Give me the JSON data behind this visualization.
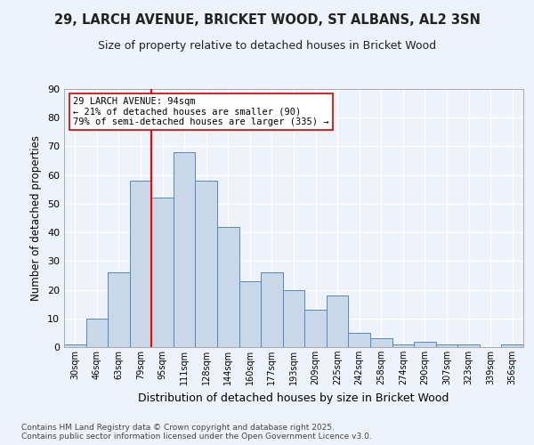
{
  "title": "29, LARCH AVENUE, BRICKET WOOD, ST ALBANS, AL2 3SN",
  "subtitle": "Size of property relative to detached houses in Bricket Wood",
  "xlabel": "Distribution of detached houses by size in Bricket Wood",
  "ylabel": "Number of detached properties",
  "bins": [
    "30sqm",
    "46sqm",
    "63sqm",
    "79sqm",
    "95sqm",
    "111sqm",
    "128sqm",
    "144sqm",
    "160sqm",
    "177sqm",
    "193sqm",
    "209sqm",
    "225sqm",
    "242sqm",
    "258sqm",
    "274sqm",
    "290sqm",
    "307sqm",
    "323sqm",
    "339sqm",
    "356sqm"
  ],
  "values": [
    1,
    10,
    26,
    58,
    52,
    68,
    58,
    42,
    23,
    26,
    20,
    13,
    18,
    5,
    3,
    1,
    2,
    1,
    1,
    0,
    1
  ],
  "bar_color": "#c8d8e8",
  "bar_edge_color": "#5588bb",
  "red_line_index": 4,
  "annotation_text": "29 LARCH AVENUE: 94sqm\n← 21% of detached houses are smaller (90)\n79% of semi-detached houses are larger (335) →",
  "annotation_box_color": "#ffffff",
  "annotation_box_edge": "#cc0000",
  "background_color": "#eef2fa",
  "grid_color": "#ffffff",
  "footnote": "Contains HM Land Registry data © Crown copyright and database right 2025.\nContains public sector information licensed under the Open Government Licence v3.0.",
  "ylim": [
    0,
    90
  ],
  "yticks": [
    0,
    10,
    20,
    30,
    40,
    50,
    60,
    70,
    80,
    90
  ]
}
